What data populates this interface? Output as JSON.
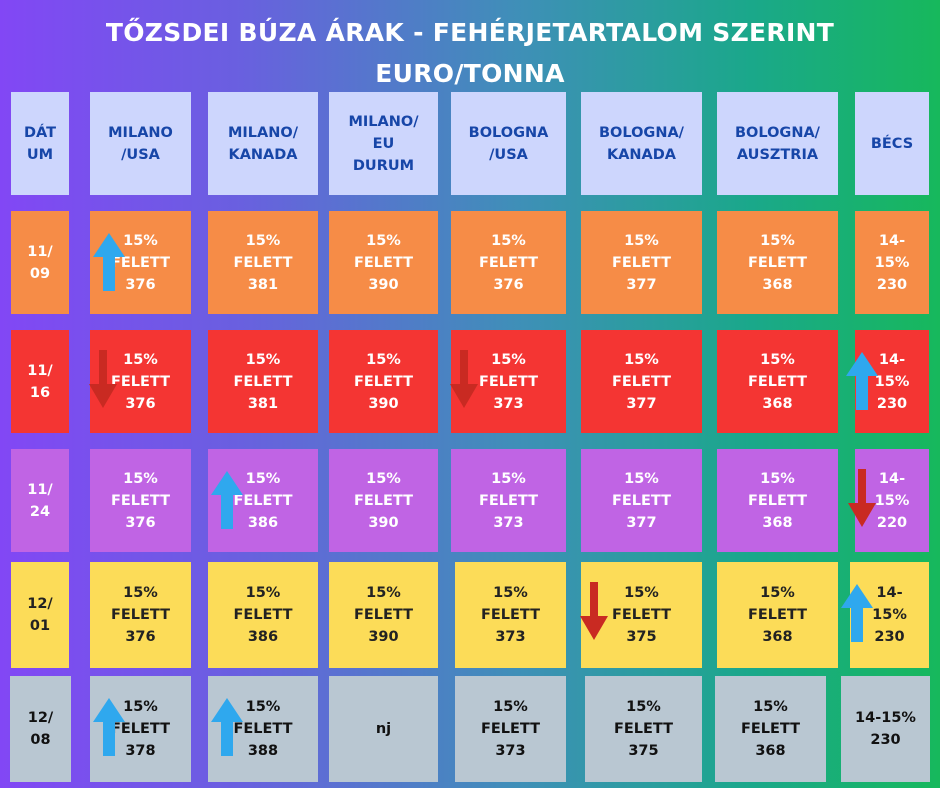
{
  "title_line1": "TŐZSDEI BÚZA ÁRAK - FEHÉRJETARTALOM SZERINT",
  "title_line2": "EURO/TONNA",
  "colors": {
    "header_bg": "#cdd6fd",
    "header_text": "#1746a8",
    "row_11_09": "#f68c47",
    "row_11_16": "#f43533",
    "row_11_24": "#c064e4",
    "row_12_01": "#fcdc58",
    "row_12_08": "#b9c7d2",
    "arrow_up": "#2fa8ee",
    "arrow_down": "#c92a22"
  },
  "headers": [
    "DÁT\nUM",
    "MILANO\n/USA",
    "MILANO/\nKANADA",
    "MILANO/\nEU\nDURUM",
    "BOLOGNA\n/USA",
    "BOLOGNA/\nKANADA",
    "BOLOGNA/\nAUSZTRIA",
    "BÉCS"
  ],
  "rows": [
    {
      "date": "11/\n09",
      "cells": [
        "15%\nFELETT\n376",
        "15%\nFELETT\n381",
        "15%\nFELETT\n390",
        "15%\nFELETT\n376",
        "15%\nFELETT\n377",
        "15%\nFELETT\n368",
        "14-\n15%\n230"
      ]
    },
    {
      "date": "11/\n16",
      "cells": [
        "15%\nFELETT\n376",
        "15%\nFELETT\n381",
        "15%\nFELETT\n390",
        "15%\nFELETT\n373",
        "15%\nFELETT\n377",
        "15%\nFELETT\n368",
        "14-\n15%\n230"
      ]
    },
    {
      "date": "11/\n24",
      "cells": [
        "15%\nFELETT\n376",
        "15%\nFELETT\n386",
        "15%\nFELETT\n390",
        "15%\nFELETT\n373",
        "15%\nFELETT\n377",
        "15%\nFELETT\n368",
        "14-\n15%\n220"
      ]
    },
    {
      "date": "12/\n01",
      "cells": [
        "15%\nFELETT\n376",
        "15%\nFELETT\n386",
        "15%\nFELETT\n390",
        "15%\nFELETT\n373",
        "15%\nFELETT\n375",
        "15%\nFELETT\n368",
        "14-\n15%\n230"
      ]
    },
    {
      "date": "12/\n08",
      "cells": [
        "15%\nFELETT\n378",
        "15%\nFELETT\n388",
        "nj",
        "15%\nFELETT\n373",
        "15%\nFELETT\n375",
        "15%\nFELETT\n368",
        "14-15%\n230"
      ]
    }
  ],
  "arrows": [
    {
      "row": 0,
      "col": 1,
      "direction": "up"
    },
    {
      "row": 1,
      "col": 1,
      "direction": "down"
    },
    {
      "row": 1,
      "col": 4,
      "direction": "down"
    },
    {
      "row": 1,
      "col": 7,
      "direction": "up"
    },
    {
      "row": 2,
      "col": 2,
      "direction": "up"
    },
    {
      "row": 2,
      "col": 7,
      "direction": "down"
    },
    {
      "row": 3,
      "col": 5,
      "direction": "down"
    },
    {
      "row": 3,
      "col": 7,
      "direction": "up"
    },
    {
      "row": 4,
      "col": 1,
      "direction": "up"
    },
    {
      "row": 4,
      "col": 2,
      "direction": "up"
    }
  ]
}
